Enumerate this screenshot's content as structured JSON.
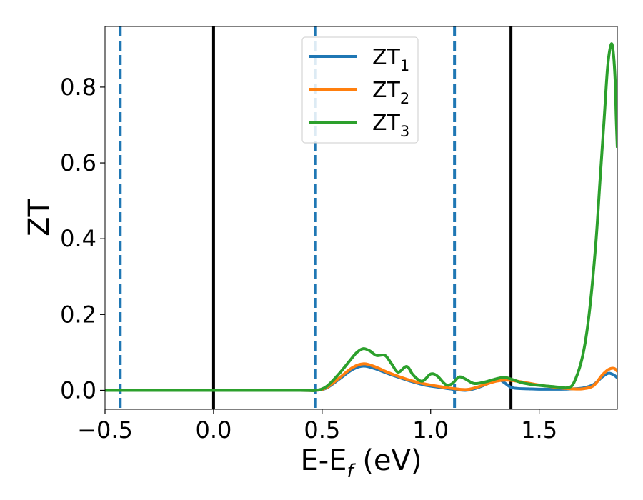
{
  "chart_data": {
    "type": "line",
    "title": "",
    "xlabel": "E-E",
    "xlabel_sub": "f",
    "xlabel_unit": " (eV)",
    "ylabel": "ZT",
    "xlim": [
      -0.5,
      1.86
    ],
    "ylim": [
      -0.05,
      0.96
    ],
    "xticks": [
      -0.5,
      0.0,
      0.5,
      1.0,
      1.5
    ],
    "xtick_labels": [
      "−0.5",
      "0.0",
      "0.5",
      "1.0",
      "1.5"
    ],
    "yticks": [
      0.0,
      0.2,
      0.4,
      0.6,
      0.8
    ],
    "ytick_labels": [
      "0.0",
      "0.2",
      "0.4",
      "0.6",
      "0.8"
    ],
    "grid": false,
    "legend_position": "upper-center",
    "vlines": [
      {
        "x": -0.43,
        "style": "dashed",
        "color": "#1f77b4"
      },
      {
        "x": 0.0,
        "style": "solid",
        "color": "#000000"
      },
      {
        "x": 0.47,
        "style": "dashed",
        "color": "#1f77b4"
      },
      {
        "x": 1.11,
        "style": "dashed",
        "color": "#1f77b4"
      },
      {
        "x": 1.37,
        "style": "solid",
        "color": "#000000"
      }
    ],
    "series": [
      {
        "name": "ZT",
        "sub": "1",
        "color": "#1f77b4",
        "x": [
          -0.5,
          0.0,
          0.4,
          0.47,
          0.52,
          0.58,
          0.64,
          0.69,
          0.74,
          0.8,
          0.86,
          0.92,
          0.98,
          1.04,
          1.1,
          1.16,
          1.2,
          1.24,
          1.28,
          1.31,
          1.34,
          1.37,
          1.4,
          1.45,
          1.5,
          1.55,
          1.6,
          1.65,
          1.7,
          1.75,
          1.79,
          1.82,
          1.845,
          1.86
        ],
        "y": [
          0.0,
          0.0,
          0.0,
          0.0,
          0.006,
          0.03,
          0.055,
          0.064,
          0.058,
          0.045,
          0.033,
          0.022,
          0.013,
          0.008,
          0.003,
          0.0,
          0.004,
          0.012,
          0.022,
          0.03,
          0.02,
          0.008,
          0.005,
          0.004,
          0.003,
          0.003,
          0.003,
          0.004,
          0.006,
          0.015,
          0.035,
          0.045,
          0.04,
          0.033
        ]
      },
      {
        "name": "ZT",
        "sub": "2",
        "color": "#ff7f0e",
        "x": [
          -0.5,
          0.0,
          0.4,
          0.47,
          0.52,
          0.58,
          0.64,
          0.69,
          0.74,
          0.8,
          0.86,
          0.92,
          0.98,
          1.04,
          1.1,
          1.16,
          1.2,
          1.25,
          1.3,
          1.35,
          1.4,
          1.45,
          1.5,
          1.55,
          1.6,
          1.65,
          1.7,
          1.75,
          1.79,
          1.82,
          1.845,
          1.86
        ],
        "y": [
          0.0,
          0.0,
          0.0,
          0.0,
          0.007,
          0.033,
          0.06,
          0.07,
          0.063,
          0.048,
          0.035,
          0.024,
          0.016,
          0.01,
          0.005,
          0.002,
          0.006,
          0.015,
          0.024,
          0.027,
          0.024,
          0.019,
          0.014,
          0.01,
          0.006,
          0.004,
          0.004,
          0.012,
          0.04,
          0.055,
          0.058,
          0.05
        ]
      },
      {
        "name": "ZT",
        "sub": "3",
        "color": "#2ca02c",
        "x": [
          -0.5,
          0.0,
          0.4,
          0.47,
          0.52,
          0.58,
          0.63,
          0.66,
          0.69,
          0.72,
          0.75,
          0.79,
          0.82,
          0.85,
          0.89,
          0.92,
          0.96,
          1.0,
          1.03,
          1.07,
          1.1,
          1.13,
          1.16,
          1.2,
          1.25,
          1.3,
          1.34,
          1.38,
          1.42,
          1.47,
          1.52,
          1.56,
          1.6,
          1.63,
          1.66,
          1.7,
          1.73,
          1.76,
          1.78,
          1.8,
          1.815,
          1.83,
          1.84,
          1.85,
          1.855,
          1.86
        ],
        "y": [
          0.0,
          0.0,
          0.0,
          0.0,
          0.01,
          0.045,
          0.08,
          0.1,
          0.11,
          0.104,
          0.092,
          0.092,
          0.07,
          0.048,
          0.063,
          0.04,
          0.024,
          0.043,
          0.038,
          0.015,
          0.018,
          0.035,
          0.03,
          0.018,
          0.022,
          0.03,
          0.034,
          0.028,
          0.02,
          0.015,
          0.012,
          0.01,
          0.008,
          0.007,
          0.02,
          0.09,
          0.2,
          0.38,
          0.55,
          0.72,
          0.85,
          0.91,
          0.9,
          0.82,
          0.72,
          0.64
        ]
      }
    ]
  }
}
